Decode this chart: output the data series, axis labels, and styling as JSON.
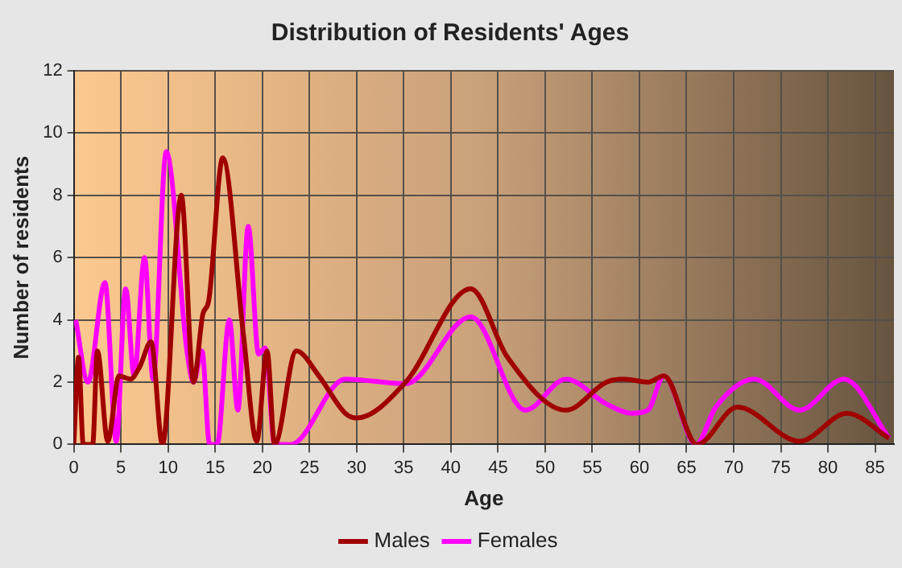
{
  "chart_data": {
    "type": "line",
    "title": "Distribution of Residents' Ages",
    "xlabel": "Age",
    "ylabel": "Number of residents",
    "xlim": [
      0,
      87
    ],
    "xticks": [
      0,
      5,
      10,
      15,
      20,
      25,
      30,
      35,
      40,
      45,
      50,
      55,
      60,
      65,
      70,
      75,
      80,
      85
    ],
    "ylim": [
      0,
      12
    ],
    "yticks": [
      0,
      2,
      4,
      6,
      8,
      10,
      12
    ],
    "grid": true,
    "legend": "bottom",
    "marker": "none",
    "line_style": "solid",
    "series": [
      {
        "name": "Males",
        "color": "#a00000",
        "x": [
          0,
          0.5,
          1,
          2,
          2.5,
          3.6,
          4.8,
          6,
          7,
          8.2,
          9.4,
          11.4,
          12.7,
          13.7,
          14.3,
          15.8,
          18,
          19.4,
          20.5,
          21.3,
          23.6,
          26,
          28.8,
          30,
          35.2,
          42.1,
          46,
          52.2,
          56.5,
          58.3,
          60.9,
          62.6,
          66.1,
          70.4,
          77,
          82,
          86.5
        ],
        "values": [
          0,
          2.8,
          0,
          0,
          3,
          0.1,
          2.2,
          2.1,
          2.5,
          3.3,
          0,
          8,
          2,
          4.2,
          4.6,
          9.2,
          3.5,
          0.1,
          3,
          0,
          3,
          2.2,
          1,
          0.85,
          2,
          5,
          2.8,
          1.1,
          2,
          2.1,
          2,
          2.2,
          0,
          1.2,
          0.1,
          1,
          0.2
        ]
      },
      {
        "name": "Females",
        "color": "#ff00ff",
        "x": [
          0.2,
          1.5,
          3.3,
          4.5,
          5.5,
          6.4,
          7.5,
          8.4,
          9.8,
          12,
          12.7,
          13.6,
          14.4,
          15.2,
          16.5,
          17.4,
          18.5,
          19.6,
          20.3,
          21.3,
          23,
          28.8,
          35.2,
          42.1,
          47.9,
          52.2,
          56.5,
          59.2,
          60.9,
          62.6,
          66,
          68.1,
          72.2,
          77,
          81.7,
          86.5
        ],
        "values": [
          4,
          2,
          5.2,
          0.1,
          5,
          2.2,
          6,
          2.1,
          9.4,
          3,
          2,
          3,
          0,
          0,
          4,
          1.1,
          7,
          2.9,
          3.1,
          0,
          0,
          2.1,
          1.95,
          4.1,
          1.1,
          2.1,
          1.3,
          1,
          1.1,
          2.2,
          0,
          1.2,
          2.1,
          1.1,
          2.1,
          0.2
        ]
      }
    ]
  }
}
